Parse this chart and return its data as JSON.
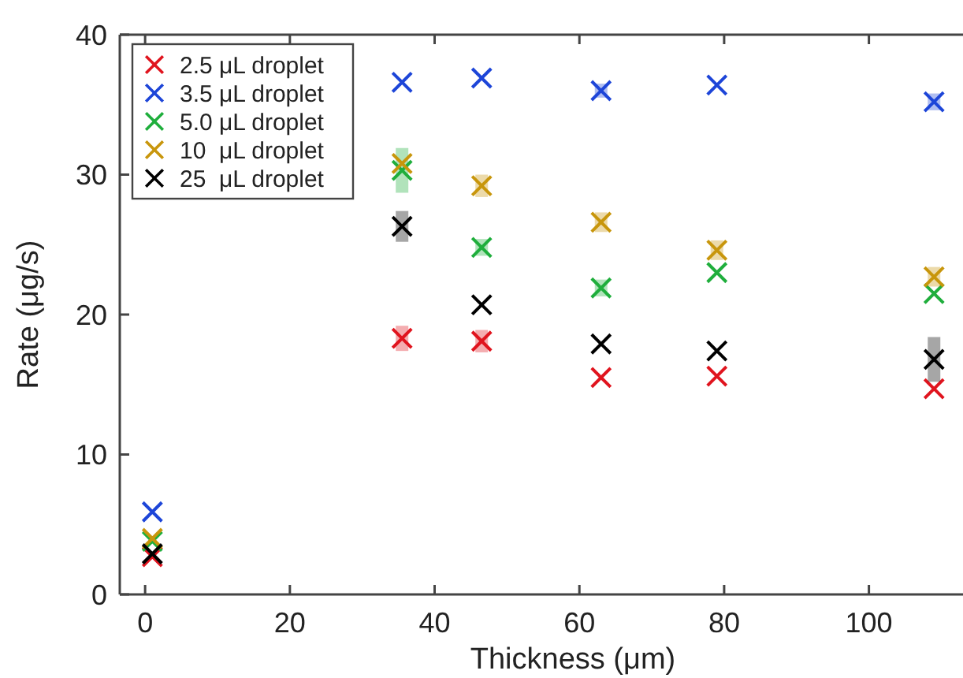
{
  "chart_data": {
    "type": "scatter",
    "xlabel": "Thickness (μm)",
    "ylabel": "Rate (μg/s)",
    "x": [
      1,
      35.5,
      46.5,
      63,
      79,
      109
    ],
    "xlim": [
      -3.5,
      113
    ],
    "xticks": [
      0,
      20,
      40,
      60,
      80,
      100
    ],
    "ylim": [
      0,
      40
    ],
    "yticks": [
      0,
      10,
      20,
      30,
      40
    ],
    "marker": "cross",
    "grid": false,
    "legend": "top left",
    "series": [
      {
        "name": "2.5 μL droplet",
        "color": "#e0141e",
        "values": [
          2.7,
          18.3,
          18.1,
          15.5,
          15.6,
          14.7
        ],
        "errors": [
          null,
          0.9,
          0.8,
          null,
          null,
          null
        ]
      },
      {
        "name": "3.5 μL droplet",
        "color": "#1d45d8",
        "values": [
          5.9,
          36.6,
          36.9,
          36.0,
          36.4,
          35.2
        ],
        "errors": [
          null,
          null,
          null,
          0.5,
          null,
          0.6
        ]
      },
      {
        "name": "5.0 μL droplet",
        "color": "#1fae3c",
        "values": [
          3.8,
          30.3,
          24.8,
          21.9,
          23.0,
          21.5
        ],
        "errors": [
          null,
          1.6,
          0.6,
          0.6,
          null,
          null
        ]
      },
      {
        "name": "10  μL droplet",
        "color": "#c8960c",
        "values": [
          4.0,
          30.8,
          29.2,
          26.6,
          24.6,
          22.7
        ],
        "errors": [
          null,
          null,
          0.8,
          0.7,
          0.7,
          0.7
        ]
      },
      {
        "name": "25  μL droplet",
        "color": "#000000",
        "values": [
          2.9,
          26.3,
          20.7,
          17.9,
          17.4,
          16.8
        ],
        "errors": [
          null,
          1.1,
          null,
          null,
          null,
          1.6
        ]
      }
    ]
  }
}
